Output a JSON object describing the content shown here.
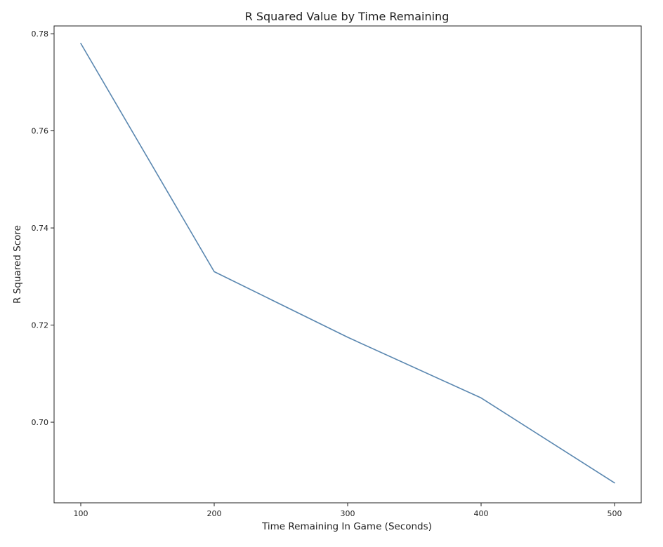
{
  "chart_data": {
    "type": "line",
    "title": "R Squared Value by Time Remaining",
    "xlabel": "Time Remaining In Game (Seconds)",
    "ylabel": "R Squared Score",
    "x": [
      100,
      200,
      300,
      400,
      500
    ],
    "series": [
      {
        "values": [
          0.778,
          0.731,
          0.7175,
          0.705,
          0.6875
        ],
        "color": "#5a87b0"
      }
    ],
    "xlim": [
      80,
      520
    ],
    "ylim": [
      0.6834,
      0.7816
    ],
    "xticks": [
      100,
      200,
      300,
      400,
      500
    ],
    "xtick_labels": [
      "100",
      "200",
      "300",
      "400",
      "500"
    ],
    "yticks": [
      0.7,
      0.72,
      0.74,
      0.76,
      0.78
    ],
    "ytick_labels": [
      "0.70",
      "0.72",
      "0.74",
      "0.76",
      "0.78"
    ],
    "grid": false,
    "legend": "none"
  }
}
